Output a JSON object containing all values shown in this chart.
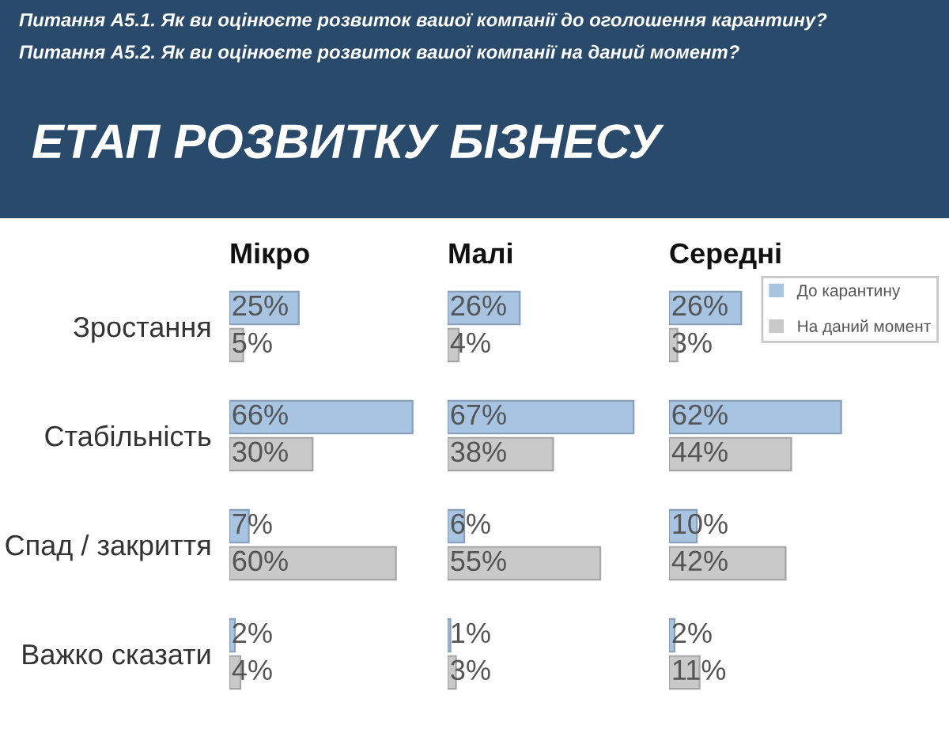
{
  "chart_data": [
    {
      "type": "bar",
      "orientation": "horizontal",
      "xlabel": "Мікро",
      "categories": [
        "Зростання",
        "Стабільність",
        "Спад / закриття",
        "Важко сказати"
      ],
      "tick_labels": "y",
      "legend": false,
      "title": "ЕТАП РОЗВИТКУ БІЗНЕСУ",
      "subtitle": "Питання А5.1. Як ви оцінюєте розвиток вашої компанії до оголошення карантину?\nПитання А5.2. Як ви оцінюєте розвиток вашої компанії на даний момент?",
      "series": [
        {
          "color": "#a7c4e3",
          "values": [
            25,
            66,
            7,
            2
          ],
          "value_labels": [
            "25%",
            "66%",
            "7%",
            "2%"
          ]
        },
        {
          "color": "#c9c9c9",
          "values": [
            5,
            30,
            60,
            4
          ],
          "value_labels": [
            "5%",
            "30%",
            "60%",
            "4%"
          ]
        }
      ]
    },
    {
      "type": "bar",
      "orientation": "horizontal",
      "xlabel": "Малі",
      "categories": [
        null,
        null,
        null,
        null
      ],
      "tick_labels": false,
      "legend": false,
      "series": [
        {
          "color": "#a7c4e3",
          "values": [
            26,
            67,
            6,
            1
          ],
          "value_labels": [
            "26%",
            "67%",
            "6%",
            "1%"
          ]
        },
        {
          "color": "#c9c9c9",
          "values": [
            4,
            38,
            55,
            3
          ],
          "value_labels": [
            "4%",
            "38%",
            "55%",
            "3%"
          ]
        }
      ]
    },
    {
      "type": "bar",
      "orientation": "horizontal",
      "xlabel": "Середні",
      "categories": [
        null,
        null,
        null,
        null
      ],
      "tick_labels": false,
      "legend": "top right",
      "series": [
        {
          "name": "До карантину",
          "color": "#a7c4e3",
          "values": [
            26,
            62,
            10,
            2
          ],
          "value_labels": [
            "26%",
            "62%",
            "10%",
            "2%"
          ]
        },
        {
          "name": "На даний момент",
          "color": "#c9c9c9",
          "values": [
            3,
            44,
            42,
            11
          ],
          "value_labels": [
            "3%",
            "44%",
            "42%",
            "11%"
          ]
        }
      ]
    }
  ]
}
